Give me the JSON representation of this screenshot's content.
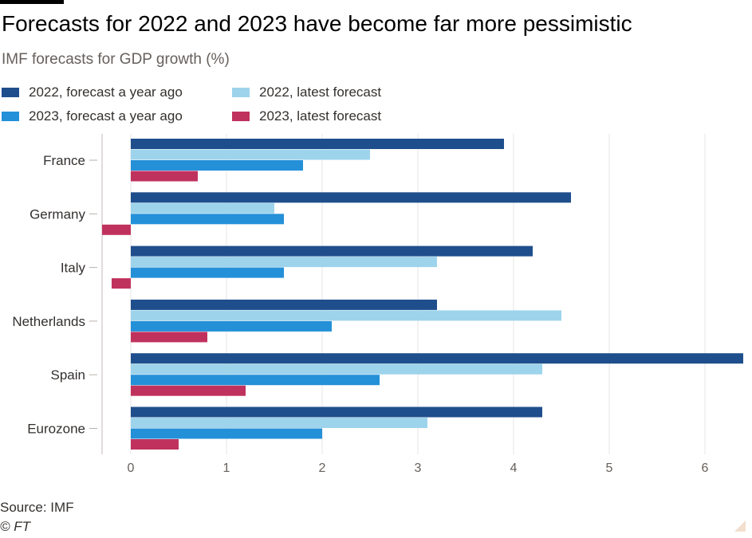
{
  "header": {
    "title": "Forecasts for 2022 and 2023 have become far more pessimistic",
    "subtitle": "IMF forecasts for GDP growth (%)"
  },
  "footer": {
    "source": "Source: IMF",
    "credit": "© FT"
  },
  "colors": {
    "s2022_year_ago": "#1f4e8c",
    "s2022_latest": "#9dd4ec",
    "s2023_year_ago": "#2490d8",
    "s2023_latest": "#c0325e",
    "grid": "#e9e6e3",
    "zero_line": "#d8cfd2"
  },
  "chart_data": {
    "type": "bar",
    "orientation": "horizontal",
    "title": "Forecasts for 2022 and 2023 have become far more pessimistic",
    "subtitle": "IMF forecasts for GDP growth (%)",
    "categories": [
      "France",
      "Germany",
      "Italy",
      "Netherlands",
      "Spain",
      "Eurozone"
    ],
    "series": [
      {
        "name": "2022, forecast a year ago",
        "values": [
          3.9,
          4.6,
          4.2,
          3.2,
          6.4,
          4.3
        ]
      },
      {
        "name": "2022, latest forecast",
        "values": [
          2.5,
          1.5,
          3.2,
          4.5,
          4.3,
          3.1
        ]
      },
      {
        "name": "2023, forecast a year ago",
        "values": [
          1.8,
          1.6,
          1.6,
          2.1,
          2.6,
          2.0
        ]
      },
      {
        "name": "2023, latest forecast",
        "values": [
          0.7,
          -0.3,
          -0.2,
          0.8,
          1.2,
          0.5
        ]
      }
    ],
    "xlim": [
      -0.3,
      6.4
    ],
    "xticks": [
      0,
      1,
      2,
      3,
      4,
      5,
      6
    ],
    "grid": true,
    "legend_position": "top-left"
  }
}
